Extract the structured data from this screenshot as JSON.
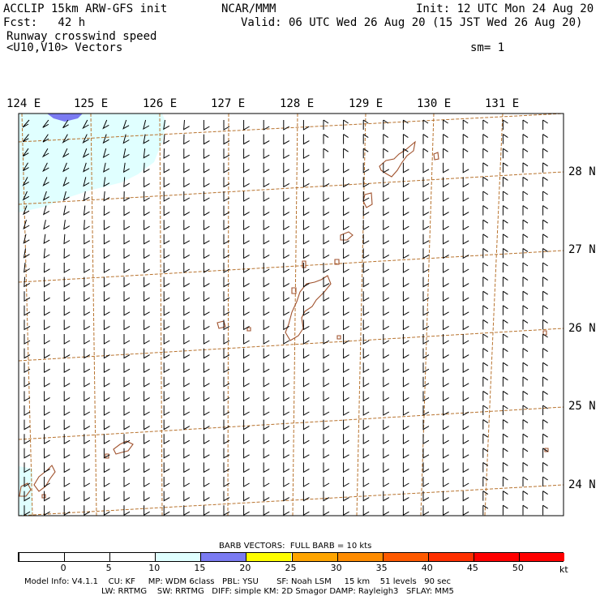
{
  "header": {
    "model_title": "ACCLIP 15km ARW-GFS init",
    "center": "NCAR/MMM",
    "init": "Init: 12 UTC Mon 24 Aug 20",
    "fcst": "Fcst:   42 h",
    "valid": "Valid: 06 UTC Wed 26 Aug 20 (15 JST Wed 26 Aug 20)",
    "field": "Runway crosswind speed",
    "vectors": "<U10,V10> Vectors",
    "smoothing": "sm= 1"
  },
  "axes": {
    "lon_labels": [
      "124 E",
      "125 E",
      "126 E",
      "127 E",
      "128 E",
      "129 E",
      "130 E",
      "131 E"
    ],
    "lat_labels": [
      "28 N",
      "27 N",
      "26 N",
      "25 N",
      "24 N"
    ]
  },
  "legend": {
    "barb_note": "BARB VECTORS:  FULL BARB = 10 kts",
    "unit": "kt",
    "ticks": [
      "0",
      "5",
      "10",
      "15",
      "20",
      "25",
      "30",
      "35",
      "40",
      "45",
      "50"
    ],
    "colors": [
      "#ffffff",
      "#ffffff",
      "#ffffff",
      "#e0ffff",
      "#7b7bf2",
      "#ffff00",
      "#ffa500",
      "#ff8c00",
      "#ff5a00",
      "#ff3000",
      "#ff0000",
      "#ff0000"
    ]
  },
  "footer": {
    "line1": "Model Info: V4.1.1    CU: KF     MP: WDM 6class   PBL: YSU       SF: Noah LSM     15 km    51 levels   90 sec",
    "line2": "LW: RRTMG    SW: RRTMG   DIFF: simple KM: 2D Smagor DAMP: Rayleigh3   SFLAY: MM5"
  },
  "map_colors": {
    "frame": "#000000",
    "gridlines": "#b8732e",
    "coast": "#a0522d",
    "low_wind_fill": "#e0ffff",
    "mid_wind_fill": "#7b7bf2",
    "barb": "#000000"
  }
}
